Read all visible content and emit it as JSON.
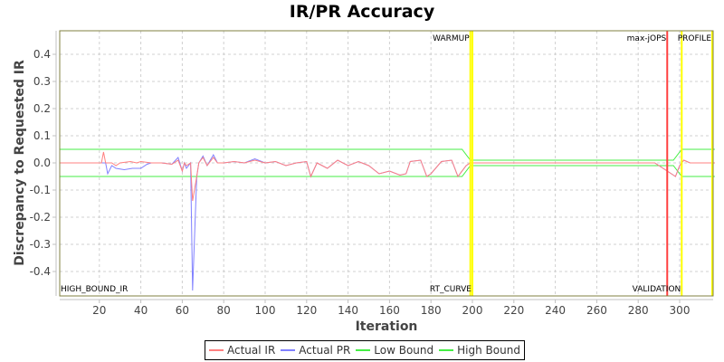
{
  "chart_data": {
    "type": "line",
    "title": "IR/PR Accuracy",
    "xlabel": "Iteration",
    "ylabel": "Discrepancy to Requested IR",
    "xlim": [
      1,
      317
    ],
    "ylim": [
      -0.48,
      0.48
    ],
    "x_ticks": [
      20,
      40,
      60,
      80,
      100,
      120,
      140,
      160,
      180,
      200,
      220,
      240,
      260,
      280,
      300
    ],
    "y_ticks": [
      0.4,
      0.3,
      0.2,
      0.1,
      0.0,
      -0.1,
      -0.2,
      -0.3,
      -0.4
    ],
    "y_tick_labels": [
      "0.4",
      "0.3",
      "0.2",
      "0.1",
      "0.0",
      "-0.1",
      "-0.2",
      "-0.3",
      "-0.4"
    ],
    "grid": true,
    "legend_position": "bottom",
    "series": [
      {
        "name": "Actual IR",
        "color": "#ff8080",
        "points": [
          [
            1,
            0
          ],
          [
            21,
            0
          ],
          [
            22,
            0.04
          ],
          [
            23,
            0
          ],
          [
            26,
            0
          ],
          [
            28,
            -0.01
          ],
          [
            30,
            0
          ],
          [
            35,
            0.005
          ],
          [
            38,
            0
          ],
          [
            40,
            0.005
          ],
          [
            45,
            0
          ],
          [
            50,
            0
          ],
          [
            55,
            -0.005
          ],
          [
            58,
            0.01
          ],
          [
            60,
            -0.03
          ],
          [
            61,
            0
          ],
          [
            62,
            -0.01
          ],
          [
            64,
            0
          ],
          [
            65,
            -0.14
          ],
          [
            67,
            -0.05
          ],
          [
            68,
            0
          ],
          [
            70,
            0.02
          ],
          [
            72,
            -0.01
          ],
          [
            75,
            0.02
          ],
          [
            77,
            0
          ],
          [
            80,
            0
          ],
          [
            85,
            0.005
          ],
          [
            90,
            0
          ],
          [
            95,
            0.01
          ],
          [
            100,
            0
          ],
          [
            105,
            0.005
          ],
          [
            110,
            -0.01
          ],
          [
            115,
            0
          ],
          [
            120,
            0.005
          ],
          [
            122,
            -0.05
          ],
          [
            125,
            0
          ],
          [
            130,
            -0.02
          ],
          [
            135,
            0.01
          ],
          [
            140,
            -0.01
          ],
          [
            145,
            0.005
          ],
          [
            150,
            -0.01
          ],
          [
            155,
            -0.04
          ],
          [
            160,
            -0.03
          ],
          [
            165,
            -0.045
          ],
          [
            168,
            -0.04
          ],
          [
            170,
            0.005
          ],
          [
            175,
            0.01
          ],
          [
            178,
            -0.05
          ],
          [
            180,
            -0.04
          ],
          [
            185,
            0.005
          ],
          [
            190,
            0.01
          ],
          [
            193,
            -0.05
          ],
          [
            197,
            -0.01
          ],
          [
            199,
            0
          ],
          [
            205,
            0
          ],
          [
            220,
            0
          ],
          [
            240,
            0
          ],
          [
            260,
            0
          ],
          [
            280,
            0
          ],
          [
            288,
            0
          ],
          [
            290,
            -0.01
          ],
          [
            292,
            -0.02
          ],
          [
            294,
            -0.03
          ],
          [
            296,
            -0.04
          ],
          [
            298,
            -0.05
          ],
          [
            300,
            -0.01
          ],
          [
            302,
            0.01
          ],
          [
            305,
            0
          ],
          [
            310,
            0
          ],
          [
            317,
            0
          ]
        ]
      },
      {
        "name": "Actual PR",
        "color": "#8080ff",
        "points": [
          [
            1,
            0
          ],
          [
            21,
            0
          ],
          [
            23,
            0
          ],
          [
            24,
            -0.04
          ],
          [
            26,
            -0.01
          ],
          [
            28,
            -0.02
          ],
          [
            32,
            -0.025
          ],
          [
            36,
            -0.02
          ],
          [
            40,
            -0.02
          ],
          [
            43,
            -0.005
          ],
          [
            45,
            0
          ],
          [
            50,
            0
          ],
          [
            55,
            -0.005
          ],
          [
            58,
            0.02
          ],
          [
            60,
            -0.03
          ],
          [
            61,
            0
          ],
          [
            62,
            -0.02
          ],
          [
            64,
            0
          ],
          [
            65,
            -0.47
          ],
          [
            67,
            -0.05
          ],
          [
            68,
            0
          ],
          [
            70,
            0.025
          ],
          [
            72,
            -0.01
          ],
          [
            75,
            0.03
          ],
          [
            77,
            0
          ],
          [
            80,
            0
          ],
          [
            85,
            0.005
          ],
          [
            90,
            0
          ],
          [
            95,
            0.015
          ],
          [
            100,
            0
          ],
          [
            105,
            0.005
          ],
          [
            110,
            -0.01
          ],
          [
            115,
            0
          ],
          [
            120,
            0.005
          ],
          [
            122,
            -0.05
          ],
          [
            125,
            0
          ],
          [
            130,
            -0.02
          ],
          [
            135,
            0.01
          ],
          [
            140,
            -0.01
          ],
          [
            145,
            0.005
          ],
          [
            150,
            -0.01
          ],
          [
            155,
            -0.04
          ],
          [
            160,
            -0.03
          ],
          [
            165,
            -0.045
          ],
          [
            168,
            -0.04
          ],
          [
            170,
            0.005
          ],
          [
            175,
            0.01
          ],
          [
            178,
            -0.05
          ],
          [
            180,
            -0.04
          ],
          [
            185,
            0.005
          ],
          [
            190,
            0.01
          ],
          [
            193,
            -0.05
          ],
          [
            197,
            -0.01
          ],
          [
            199,
            0
          ],
          [
            205,
            0
          ],
          [
            220,
            0
          ],
          [
            240,
            0
          ],
          [
            260,
            0
          ],
          [
            280,
            0
          ],
          [
            288,
            0
          ],
          [
            290,
            -0.01
          ],
          [
            292,
            -0.02
          ],
          [
            294,
            -0.03
          ],
          [
            296,
            -0.04
          ],
          [
            298,
            -0.05
          ],
          [
            300,
            -0.01
          ],
          [
            302,
            0.01
          ],
          [
            305,
            0
          ],
          [
            310,
            0
          ],
          [
            317,
            0
          ]
        ]
      },
      {
        "name": "Low Bound",
        "color": "#44ee44",
        "points": [
          [
            1,
            -0.05
          ],
          [
            195,
            -0.05
          ],
          [
            199,
            -0.01
          ],
          [
            297,
            -0.01
          ],
          [
            301,
            -0.05
          ],
          [
            317,
            -0.05
          ]
        ]
      },
      {
        "name": "High Bound",
        "color": "#44ee44",
        "points": [
          [
            1,
            0.05
          ],
          [
            195,
            0.05
          ],
          [
            199,
            0.01
          ],
          [
            297,
            0.01
          ],
          [
            301,
            0.05
          ],
          [
            317,
            0.05
          ]
        ]
      }
    ],
    "markers": [
      {
        "label": "HIGH_BOUND_IR",
        "x": 1,
        "color": "#ffff00",
        "label_pos": "bottom"
      },
      {
        "label": "WARMUP",
        "x": 199,
        "color": "#ffff00",
        "label_pos": "top"
      },
      {
        "label": "RT_CURVE",
        "x": 200,
        "color": "#ffff00",
        "label_pos": "bottom"
      },
      {
        "label": "max-jOPS",
        "x": 294,
        "color": "#ff4040",
        "label_pos": "top"
      },
      {
        "label": "VALIDATION",
        "x": 301,
        "color": "#ffff00",
        "label_pos": "bottom"
      },
      {
        "label": "PROFILE",
        "x": 317,
        "color": "#ffff00",
        "label_pos": "top"
      }
    ]
  },
  "legend": {
    "items": [
      {
        "label": "Actual IR",
        "color": "#ff8080"
      },
      {
        "label": "Actual PR",
        "color": "#8080ff"
      },
      {
        "label": "Low Bound",
        "color": "#44ee44"
      },
      {
        "label": "High Bound",
        "color": "#44ee44"
      }
    ]
  }
}
